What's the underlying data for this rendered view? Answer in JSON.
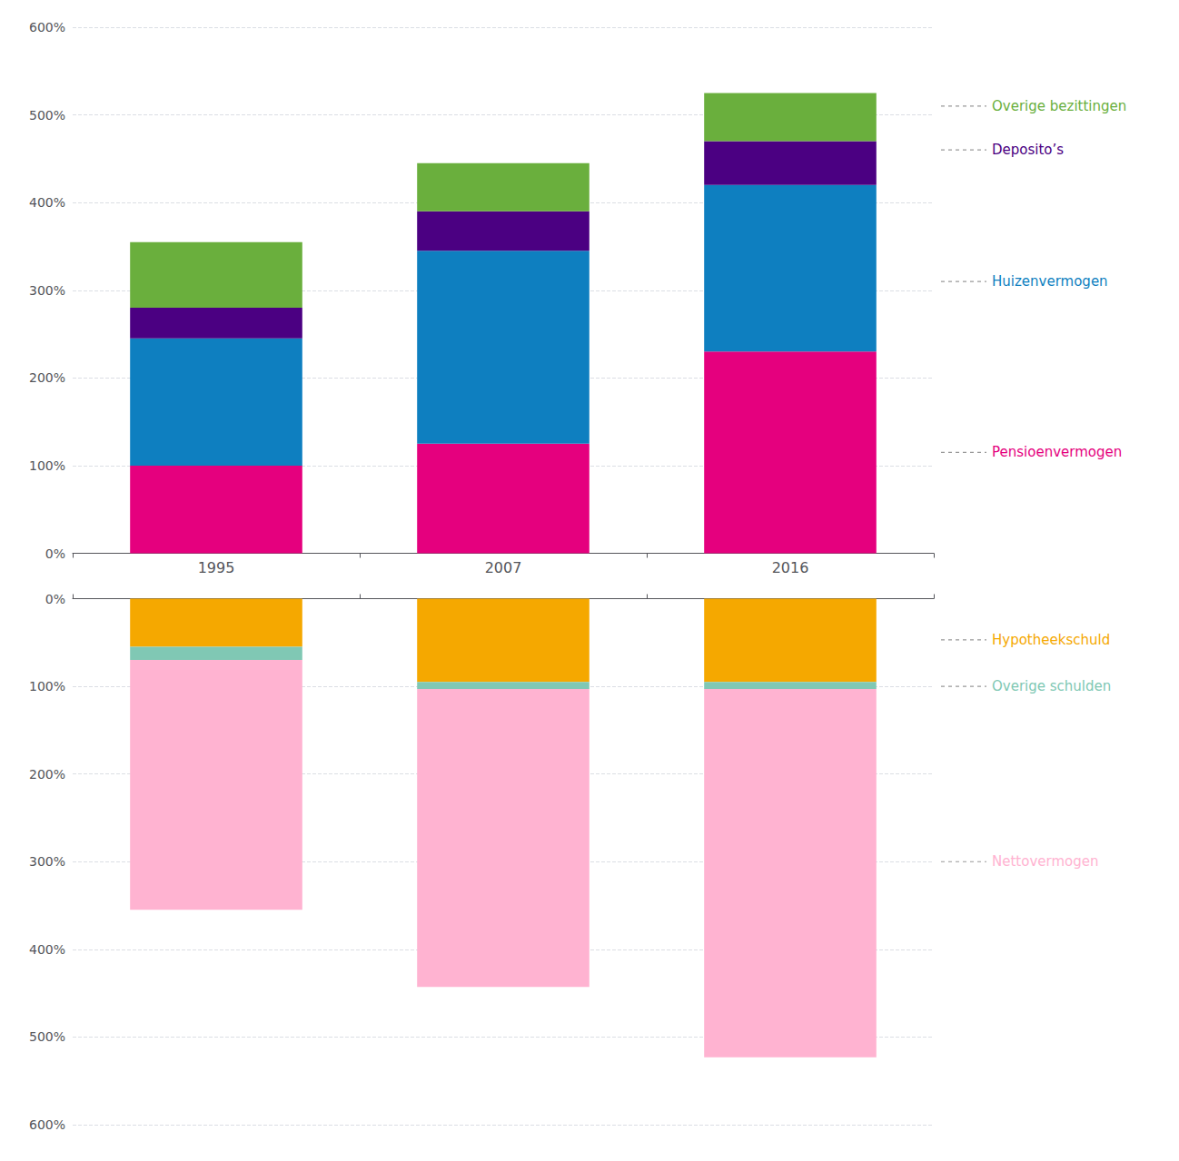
{
  "chart_data": [
    {
      "type": "bar",
      "stacked": true,
      "grid": true,
      "categories": [
        "1995",
        "2007",
        "2016"
      ],
      "series": [
        {
          "name": "Pensioenvermogen",
          "color": "#E5007E",
          "values": [
            100,
            125,
            230
          ]
        },
        {
          "name": "Huizenvermogen",
          "color": "#0E7FC0",
          "values": [
            145,
            220,
            190
          ]
        },
        {
          "name": "Deposito’s",
          "color": "#4B0082",
          "values": [
            35,
            45,
            50
          ]
        },
        {
          "name": "Overige bezittingen",
          "color": "#6AAF3D",
          "values": [
            75,
            55,
            55
          ]
        }
      ],
      "ylim": [
        0,
        600
      ],
      "yticks": [
        {
          "value": 0,
          "label": "0%"
        },
        {
          "value": 100,
          "label": "100%"
        },
        {
          "value": 200,
          "label": "200%"
        },
        {
          "value": 300,
          "label": "300%"
        },
        {
          "value": 400,
          "label": "400%"
        },
        {
          "value": 500,
          "label": "500%"
        },
        {
          "value": 600,
          "label": "600%"
        }
      ],
      "annotations": [
        {
          "text": "Overige bezittingen",
          "color": "#6AAF3D",
          "y": 510
        },
        {
          "text": "Deposito’s",
          "color": "#4B0082",
          "y": 460
        },
        {
          "text": "Huizenvermogen",
          "color": "#0E7FC0",
          "y": 310
        },
        {
          "text": "Pensioenvermogen",
          "color": "#E5007E",
          "y": 115
        }
      ]
    },
    {
      "type": "bar",
      "stacked": true,
      "grid": true,
      "tick_labels": "y",
      "categories": [
        "1995",
        "2007",
        "2016"
      ],
      "series": [
        {
          "name": "Hypotheekschuld",
          "color": "#F5A800",
          "values": [
            55,
            95,
            95
          ]
        },
        {
          "name": "Overige schulden",
          "color": "#80C8B4",
          "values": [
            15,
            8,
            8
          ]
        },
        {
          "name": "Nettovermogen",
          "color": "#FFB3D1",
          "values": [
            285,
            340,
            420
          ]
        }
      ],
      "ylim": [
        600,
        0
      ],
      "yticks": [
        {
          "value": 0,
          "label": "0%"
        },
        {
          "value": 100,
          "label": "100%"
        },
        {
          "value": 200,
          "label": "200%"
        },
        {
          "value": 300,
          "label": "300%"
        },
        {
          "value": 400,
          "label": "400%"
        },
        {
          "value": 500,
          "label": "500%"
        },
        {
          "value": 600,
          "label": "600%"
        }
      ],
      "annotations": [
        {
          "text": "Hypotheekschuld",
          "color": "#F5A800",
          "y": 47
        },
        {
          "text": "Overige schulden",
          "color": "#80C8B4",
          "y": 100
        },
        {
          "text": "Nettovermogen",
          "color": "#FFB3D1",
          "y": 300
        }
      ]
    }
  ]
}
